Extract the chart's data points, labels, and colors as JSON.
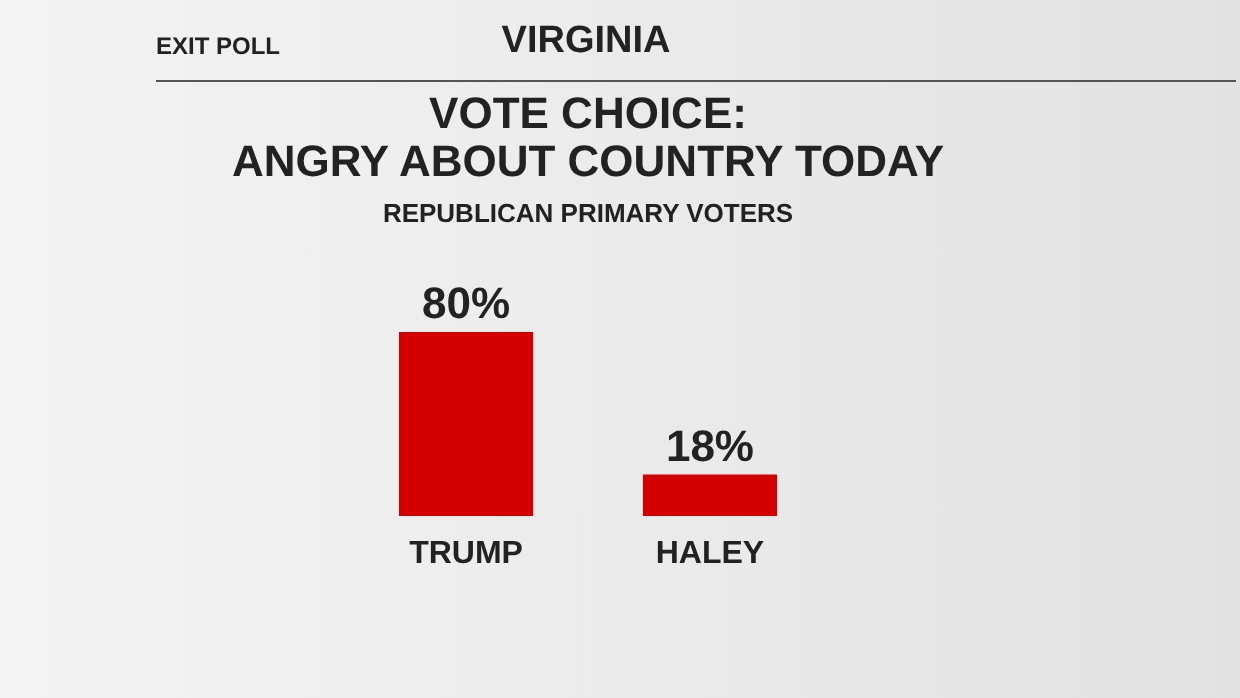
{
  "chart_data": {
    "type": "bar",
    "title": "VOTE CHOICE: ANGRY ABOUT COUNTRY TODAY",
    "subtitle": "REPUBLICAN PRIMARY VOTERS",
    "annotations": [
      "EXIT POLL",
      "VIRGINIA"
    ],
    "categories": [
      "TRUMP",
      "HALEY"
    ],
    "values": [
      80,
      18
    ],
    "value_labels": [
      "80%",
      "18%"
    ],
    "color": "#d40000"
  }
}
